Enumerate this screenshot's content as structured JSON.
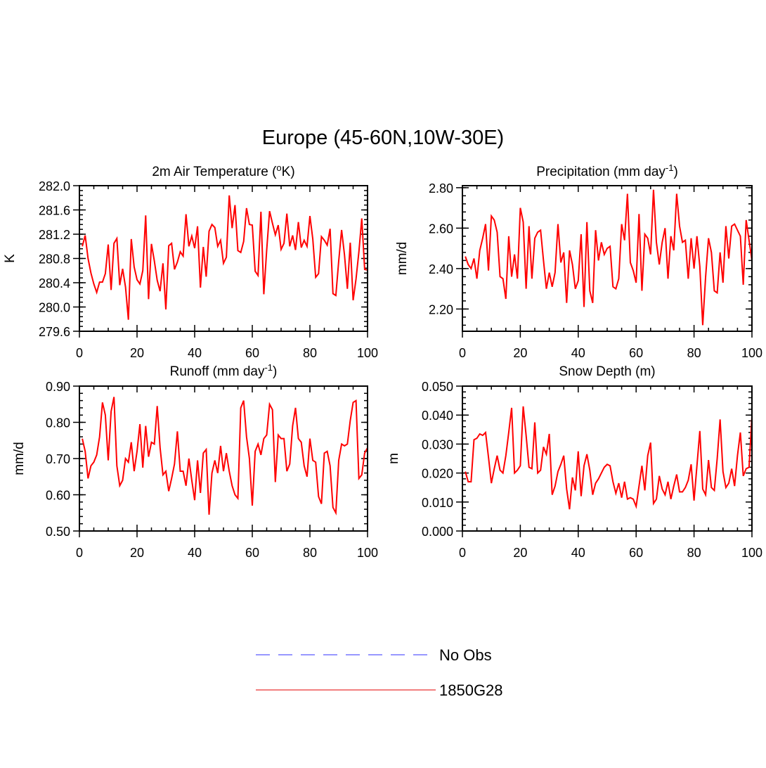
{
  "title": "Europe (45-60N,10W-30E)",
  "chart_data": [
    {
      "type": "line",
      "title": "2m Air Temperature (",
      "title_sup": "o",
      "title_tail": "K)",
      "xlabel": "",
      "ylabel": "K",
      "xlim": [
        0,
        100
      ],
      "ylim": [
        279.6,
        282.0
      ],
      "xticks": [
        0,
        20,
        40,
        60,
        80,
        100
      ],
      "yticks": [
        279.6,
        280.0,
        280.4,
        280.8,
        281.2,
        281.6,
        282.0
      ],
      "ytick_labels": [
        "279.6",
        "280.0",
        "280.4",
        "280.8",
        "281.2",
        "281.6",
        "282.0"
      ],
      "series": [
        {
          "name": "1850G28",
          "color": "#ff0000",
          "x": [
            1,
            2,
            3,
            4,
            5,
            6,
            7,
            8,
            9,
            10,
            11,
            12,
            13,
            14,
            15,
            16,
            17,
            18,
            19,
            20,
            21,
            22,
            23,
            24,
            25,
            26,
            27,
            28,
            29,
            30,
            31,
            32,
            33,
            34,
            35,
            36,
            37,
            38,
            39,
            40,
            41,
            42,
            43,
            44,
            45,
            46,
            47,
            48,
            49,
            50,
            51,
            52,
            53,
            54,
            55,
            56,
            57,
            58,
            59,
            60,
            61,
            62,
            63,
            64,
            65,
            66,
            67,
            68,
            69,
            70,
            71,
            72,
            73,
            74,
            75,
            76,
            77,
            78,
            79,
            80,
            81,
            82,
            83,
            84,
            85,
            86,
            87,
            88,
            89,
            90,
            91,
            92,
            93,
            94,
            95,
            96,
            97,
            98,
            99,
            100
          ],
          "values": [
            281.0,
            281.18,
            280.8,
            280.56,
            280.38,
            280.24,
            280.41,
            280.41,
            280.55,
            281.03,
            280.28,
            281.05,
            281.13,
            280.36,
            280.63,
            280.33,
            279.79,
            281.12,
            280.66,
            280.45,
            280.38,
            280.6,
            281.51,
            280.13,
            281.04,
            280.76,
            280.44,
            280.26,
            280.72,
            279.96,
            281.01,
            281.05,
            280.62,
            280.74,
            280.91,
            280.84,
            281.53,
            281.0,
            281.17,
            280.97,
            281.33,
            280.32,
            280.99,
            280.5,
            281.25,
            281.36,
            281.31,
            281.0,
            281.1,
            280.72,
            280.82,
            281.84,
            281.3,
            281.68,
            280.93,
            280.9,
            281.08,
            281.63,
            281.36,
            281.35,
            280.59,
            280.52,
            281.57,
            280.21,
            280.94,
            281.58,
            281.38,
            281.19,
            281.35,
            280.95,
            281.05,
            281.54,
            281.0,
            281.18,
            280.94,
            281.4,
            280.98,
            281.1,
            281.0,
            281.5,
            281.12,
            280.49,
            280.55,
            281.16,
            281.1,
            281.02,
            281.29,
            280.22,
            280.19,
            280.76,
            281.27,
            280.86,
            280.3,
            281.06,
            280.11,
            280.46,
            280.91,
            281.46,
            280.62,
            280.61
          ]
        }
      ]
    },
    {
      "type": "line",
      "title": "Precipitation (mm day",
      "title_sup": "-1",
      "title_tail": ")",
      "xlabel": "",
      "ylabel": "mm/d",
      "xlim": [
        0,
        100
      ],
      "ylim": [
        2.09,
        2.81
      ],
      "xticks": [
        0,
        20,
        40,
        60,
        80,
        100
      ],
      "yticks": [
        2.2,
        2.4,
        2.6,
        2.8
      ],
      "ytick_labels": [
        "2.20",
        "2.40",
        "2.60",
        "2.80"
      ],
      "series": [
        {
          "name": "1850G28",
          "color": "#ff0000",
          "x": [
            1,
            2,
            3,
            4,
            5,
            6,
            7,
            8,
            9,
            10,
            11,
            12,
            13,
            14,
            15,
            16,
            17,
            18,
            19,
            20,
            21,
            22,
            23,
            24,
            25,
            26,
            27,
            28,
            29,
            30,
            31,
            32,
            33,
            34,
            35,
            36,
            37,
            38,
            39,
            40,
            41,
            42,
            43,
            44,
            45,
            46,
            47,
            48,
            49,
            50,
            51,
            52,
            53,
            54,
            55,
            56,
            57,
            58,
            59,
            60,
            61,
            62,
            63,
            64,
            65,
            66,
            67,
            68,
            69,
            70,
            71,
            72,
            73,
            74,
            75,
            76,
            77,
            78,
            79,
            80,
            81,
            82,
            83,
            84,
            85,
            86,
            87,
            88,
            89,
            90,
            91,
            92,
            93,
            94,
            95,
            96,
            97,
            98,
            99,
            100
          ],
          "values": [
            2.46,
            2.42,
            2.4,
            2.45,
            2.35,
            2.49,
            2.55,
            2.62,
            2.39,
            2.66,
            2.64,
            2.58,
            2.36,
            2.35,
            2.25,
            2.56,
            2.36,
            2.47,
            2.35,
            2.7,
            2.63,
            2.3,
            2.61,
            2.35,
            2.55,
            2.58,
            2.59,
            2.44,
            2.3,
            2.38,
            2.31,
            2.38,
            2.62,
            2.43,
            2.48,
            2.23,
            2.49,
            2.42,
            2.3,
            2.34,
            2.57,
            2.21,
            2.63,
            2.29,
            2.23,
            2.59,
            2.44,
            2.53,
            2.47,
            2.5,
            2.51,
            2.31,
            2.3,
            2.35,
            2.62,
            2.54,
            2.77,
            2.43,
            2.39,
            2.33,
            2.67,
            2.29,
            2.57,
            2.55,
            2.47,
            2.79,
            2.53,
            2.42,
            2.53,
            2.6,
            2.35,
            2.56,
            2.49,
            2.77,
            2.61,
            2.53,
            2.54,
            2.35,
            2.55,
            2.4,
            2.56,
            2.41,
            2.12,
            2.36,
            2.55,
            2.48,
            2.29,
            2.28,
            2.48,
            2.33,
            2.61,
            2.45,
            2.61,
            2.62,
            2.59,
            2.56,
            2.32,
            2.64,
            2.54,
            2.44
          ]
        }
      ]
    },
    {
      "type": "line",
      "title": "Runoff (mm day",
      "title_sup": "-1",
      "title_tail": ")",
      "xlabel": "",
      "ylabel": "mm/d",
      "xlim": [
        0,
        100
      ],
      "ylim": [
        0.5,
        0.9
      ],
      "xticks": [
        0,
        20,
        40,
        60,
        80,
        100
      ],
      "yticks": [
        0.5,
        0.6,
        0.7,
        0.8,
        0.9
      ],
      "ytick_labels": [
        "0.50",
        "0.60",
        "0.70",
        "0.80",
        "0.90"
      ],
      "series": [
        {
          "name": "1850G28",
          "color": "#ff0000",
          "x": [
            1,
            2,
            3,
            4,
            5,
            6,
            7,
            8,
            9,
            10,
            11,
            12,
            13,
            14,
            15,
            16,
            17,
            18,
            19,
            20,
            21,
            22,
            23,
            24,
            25,
            26,
            27,
            28,
            29,
            30,
            31,
            32,
            33,
            34,
            35,
            36,
            37,
            38,
            39,
            40,
            41,
            42,
            43,
            44,
            45,
            46,
            47,
            48,
            49,
            50,
            51,
            52,
            53,
            54,
            55,
            56,
            57,
            58,
            59,
            60,
            61,
            62,
            63,
            64,
            65,
            66,
            67,
            68,
            69,
            70,
            71,
            72,
            73,
            74,
            75,
            76,
            77,
            78,
            79,
            80,
            81,
            82,
            83,
            84,
            85,
            86,
            87,
            88,
            89,
            90,
            91,
            92,
            93,
            94,
            95,
            96,
            97,
            98,
            99,
            100
          ],
          "values": [
            0.755,
            0.72,
            0.645,
            0.68,
            0.69,
            0.71,
            0.76,
            0.855,
            0.82,
            0.695,
            0.83,
            0.87,
            0.68,
            0.625,
            0.64,
            0.7,
            0.69,
            0.745,
            0.665,
            0.72,
            0.795,
            0.675,
            0.79,
            0.705,
            0.745,
            0.74,
            0.845,
            0.73,
            0.655,
            0.665,
            0.61,
            0.645,
            0.685,
            0.775,
            0.665,
            0.665,
            0.625,
            0.7,
            0.64,
            0.585,
            0.695,
            0.605,
            0.715,
            0.725,
            0.545,
            0.66,
            0.695,
            0.66,
            0.735,
            0.665,
            0.715,
            0.665,
            0.625,
            0.6,
            0.59,
            0.84,
            0.86,
            0.76,
            0.7,
            0.57,
            0.72,
            0.74,
            0.71,
            0.755,
            0.765,
            0.85,
            0.835,
            0.635,
            0.765,
            0.755,
            0.755,
            0.665,
            0.685,
            0.79,
            0.84,
            0.755,
            0.745,
            0.68,
            0.65,
            0.755,
            0.695,
            0.69,
            0.595,
            0.575,
            0.715,
            0.72,
            0.68,
            0.565,
            0.55,
            0.695,
            0.74,
            0.735,
            0.74,
            0.805,
            0.855,
            0.86,
            0.645,
            0.655,
            0.715,
            0.73
          ]
        }
      ]
    },
    {
      "type": "line",
      "title": "Snow Depth (m)",
      "title_sup": "",
      "title_tail": "",
      "xlabel": "",
      "ylabel": "m",
      "xlim": [
        0,
        100
      ],
      "ylim": [
        0.0,
        0.05
      ],
      "xticks": [
        0,
        20,
        40,
        60,
        80,
        100
      ],
      "yticks": [
        0.0,
        0.01,
        0.02,
        0.03,
        0.04,
        0.05
      ],
      "ytick_labels": [
        "0.000",
        "0.010",
        "0.020",
        "0.030",
        "0.040",
        "0.050"
      ],
      "series": [
        {
          "name": "1850G28",
          "color": "#ff0000",
          "x": [
            1,
            2,
            3,
            4,
            5,
            6,
            7,
            8,
            9,
            10,
            11,
            12,
            13,
            14,
            15,
            16,
            17,
            18,
            19,
            20,
            21,
            22,
            23,
            24,
            25,
            26,
            27,
            28,
            29,
            30,
            31,
            32,
            33,
            34,
            35,
            36,
            37,
            38,
            39,
            40,
            41,
            42,
            43,
            44,
            45,
            46,
            47,
            48,
            49,
            50,
            51,
            52,
            53,
            54,
            55,
            56,
            57,
            58,
            59,
            60,
            61,
            62,
            63,
            64,
            65,
            66,
            67,
            68,
            69,
            70,
            71,
            72,
            73,
            74,
            75,
            76,
            77,
            78,
            79,
            80,
            81,
            82,
            83,
            84,
            85,
            86,
            87,
            88,
            89,
            90,
            91,
            92,
            93,
            94,
            95,
            96,
            97,
            98,
            99,
            100
          ],
          "values": [
            0.0205,
            0.017,
            0.017,
            0.0315,
            0.032,
            0.0335,
            0.033,
            0.034,
            0.0255,
            0.0165,
            0.0215,
            0.026,
            0.021,
            0.02,
            0.026,
            0.034,
            0.0425,
            0.02,
            0.021,
            0.0225,
            0.043,
            0.033,
            0.022,
            0.0215,
            0.0375,
            0.02,
            0.021,
            0.029,
            0.0265,
            0.0335,
            0.0125,
            0.0155,
            0.0205,
            0.023,
            0.026,
            0.0145,
            0.0075,
            0.0185,
            0.014,
            0.0275,
            0.012,
            0.0225,
            0.0265,
            0.021,
            0.0125,
            0.0165,
            0.018,
            0.02,
            0.022,
            0.023,
            0.0225,
            0.017,
            0.013,
            0.0165,
            0.0115,
            0.017,
            0.011,
            0.0115,
            0.011,
            0.0085,
            0.0155,
            0.0225,
            0.014,
            0.026,
            0.0305,
            0.0095,
            0.011,
            0.019,
            0.0145,
            0.0125,
            0.017,
            0.011,
            0.0155,
            0.0195,
            0.0135,
            0.0135,
            0.015,
            0.0175,
            0.023,
            0.0105,
            0.0225,
            0.0345,
            0.0145,
            0.0125,
            0.0245,
            0.015,
            0.014,
            0.025,
            0.0385,
            0.0205,
            0.015,
            0.0165,
            0.0215,
            0.0155,
            0.026,
            0.034,
            0.019,
            0.0215,
            0.022,
            0.0395
          ]
        }
      ]
    }
  ],
  "legend": {
    "items": [
      {
        "label": "No Obs",
        "color": "#7777ff",
        "style": "dashed"
      },
      {
        "label": "1850G28",
        "color": "#ee5555",
        "style": "solid"
      }
    ]
  }
}
